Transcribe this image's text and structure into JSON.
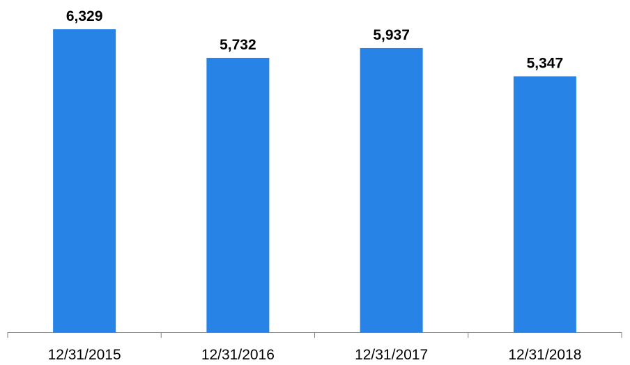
{
  "chart_data": {
    "type": "bar",
    "categories": [
      "12/31/2015",
      "12/31/2016",
      "12/31/2017",
      "12/31/2018"
    ],
    "values": [
      6329,
      5732,
      5937,
      5347
    ],
    "value_labels": [
      "6,329",
      "5,732",
      "5,937",
      "5,347"
    ],
    "title": "",
    "xlabel": "",
    "ylabel": "",
    "ylim": [
      0,
      6329
    ],
    "grid": false,
    "legend": "none",
    "bar_color": "#2883E6",
    "axis_color": "#808080"
  }
}
